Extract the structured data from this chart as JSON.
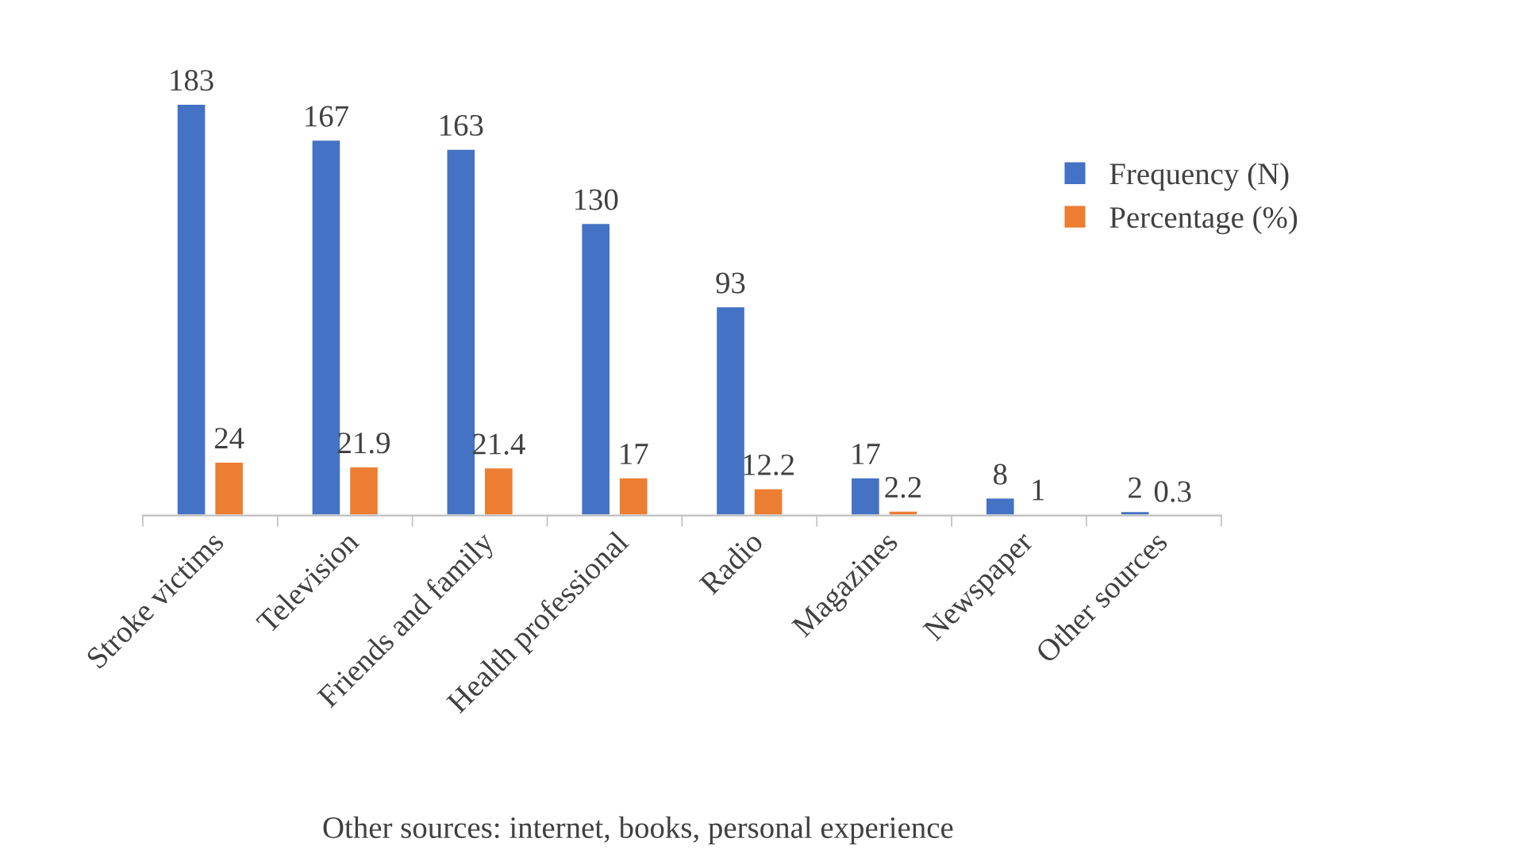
{
  "chart_data": {
    "type": "bar",
    "categories": [
      "Stroke victims",
      "Television",
      "Friends and family",
      "Health professional",
      "Radio",
      "Magazines",
      "Newspaper",
      "Other sources"
    ],
    "series": [
      {
        "name": "Frequency (N)",
        "color": "#4472c4",
        "values": [
          183,
          167,
          163,
          130,
          93,
          17,
          8,
          2
        ]
      },
      {
        "name": "Percentage (%)",
        "color": "#ed7d31",
        "values": [
          24,
          21.9,
          21.4,
          17,
          12.2,
          2.2,
          1,
          0.3
        ]
      }
    ],
    "data_labels": true,
    "legend": "top right",
    "grid": false,
    "annotations": [
      "Other sources: internet, books, personal experience"
    ]
  }
}
